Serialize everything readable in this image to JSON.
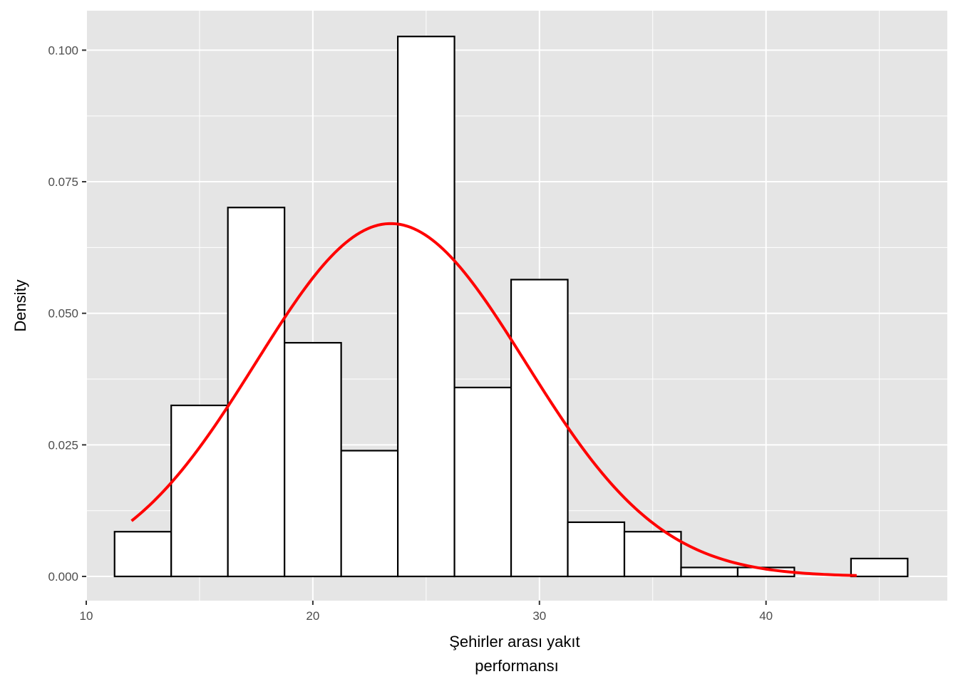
{
  "chart_data": {
    "type": "bar",
    "subtype": "histogram-with-density-curve",
    "title": "",
    "xlabel_lines": [
      "Şehirler arası yakıt",
      "performansı"
    ],
    "ylabel": "Density",
    "xlim": [
      10,
      48
    ],
    "ylim": [
      -0.0046,
      0.1075
    ],
    "x_ticks": [
      10,
      20,
      30,
      40
    ],
    "x_tick_labels": [
      "10",
      "20",
      "30",
      "40"
    ],
    "y_ticks": [
      0,
      0.025,
      0.05,
      0.075,
      0.1
    ],
    "y_tick_labels": [
      "0.000",
      "0.025",
      "0.050",
      "0.075",
      "0.100"
    ],
    "grid": true,
    "bins": [
      {
        "x0": 11.25,
        "x1": 13.75,
        "density": 0.0085
      },
      {
        "x0": 13.75,
        "x1": 16.25,
        "density": 0.0325
      },
      {
        "x0": 16.25,
        "x1": 18.75,
        "density": 0.0701
      },
      {
        "x0": 18.75,
        "x1": 21.25,
        "density": 0.0444
      },
      {
        "x0": 21.25,
        "x1": 23.75,
        "density": 0.0239
      },
      {
        "x0": 23.75,
        "x1": 26.25,
        "density": 0.1026
      },
      {
        "x0": 26.25,
        "x1": 28.75,
        "density": 0.0359
      },
      {
        "x0": 28.75,
        "x1": 31.25,
        "density": 0.0564
      },
      {
        "x0": 31.25,
        "x1": 33.75,
        "density": 0.0103
      },
      {
        "x0": 33.75,
        "x1": 36.25,
        "density": 0.0085
      },
      {
        "x0": 36.25,
        "x1": 38.75,
        "density": 0.0017
      },
      {
        "x0": 38.75,
        "x1": 41.25,
        "density": 0.0017
      },
      {
        "x0": 41.25,
        "x1": 43.75,
        "density": 0.0
      },
      {
        "x0": 43.75,
        "x1": 46.25,
        "density": 0.0034
      }
    ],
    "density_curve": {
      "distribution": "normal",
      "mean": 23.44,
      "sd": 5.95,
      "x_range": [
        12,
        44
      ]
    },
    "colors": {
      "panel_background": "#e5e5e5",
      "grid": "#ffffff",
      "bar_fill": "#ffffff",
      "bar_outline": "#000000",
      "curve": "#ff0000"
    }
  }
}
